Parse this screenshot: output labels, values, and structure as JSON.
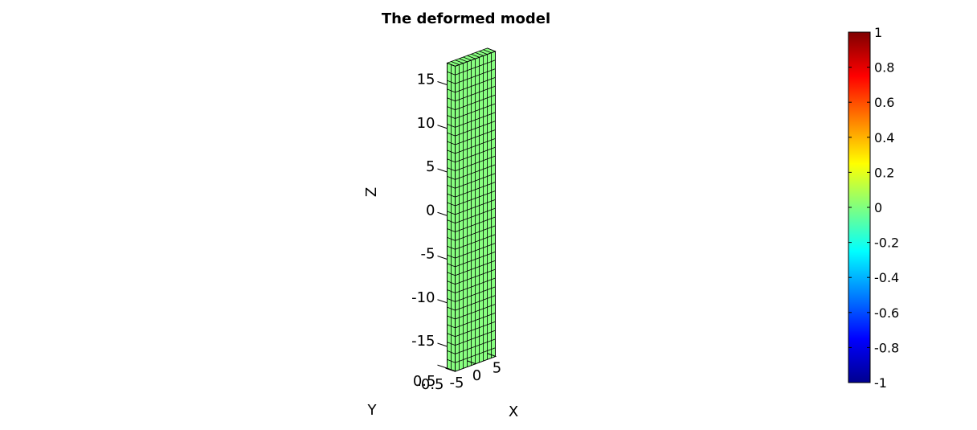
{
  "chart_data": {
    "type": "surface3d",
    "title": "The deformed model",
    "xlabel": "X",
    "ylabel": "Y",
    "zlabel": "Z",
    "x_ticks": [
      -5,
      0,
      5
    ],
    "y_ticks": [
      0.5,
      -0.5
    ],
    "y_tick_labels": [
      "0.5",
      "-0.5"
    ],
    "z_ticks": [
      -15,
      -10,
      -5,
      0,
      5,
      10,
      15
    ],
    "xlim": [
      -5,
      5
    ],
    "ylim": [
      -0.5,
      0.5
    ],
    "zlim": [
      -17.5,
      17.5
    ],
    "mesh": {
      "columns_x": 10,
      "rows_z": 35,
      "columns_y": 1,
      "face_value": 0
    },
    "colormap": "jet",
    "colorbar": {
      "range": [
        -1,
        1
      ],
      "ticks": [
        1,
        0.8,
        0.6,
        0.4,
        0.2,
        0,
        -0.2,
        -0.4,
        -0.6,
        -0.8,
        -1
      ],
      "tick_labels": [
        "1",
        "0.8",
        "0.6",
        "0.4",
        "0.2",
        "0",
        "-0.2",
        "-0.4",
        "-0.6",
        "-0.8",
        "-1"
      ]
    },
    "colors": {
      "face": "#88ff80",
      "edge": "#000000"
    }
  }
}
